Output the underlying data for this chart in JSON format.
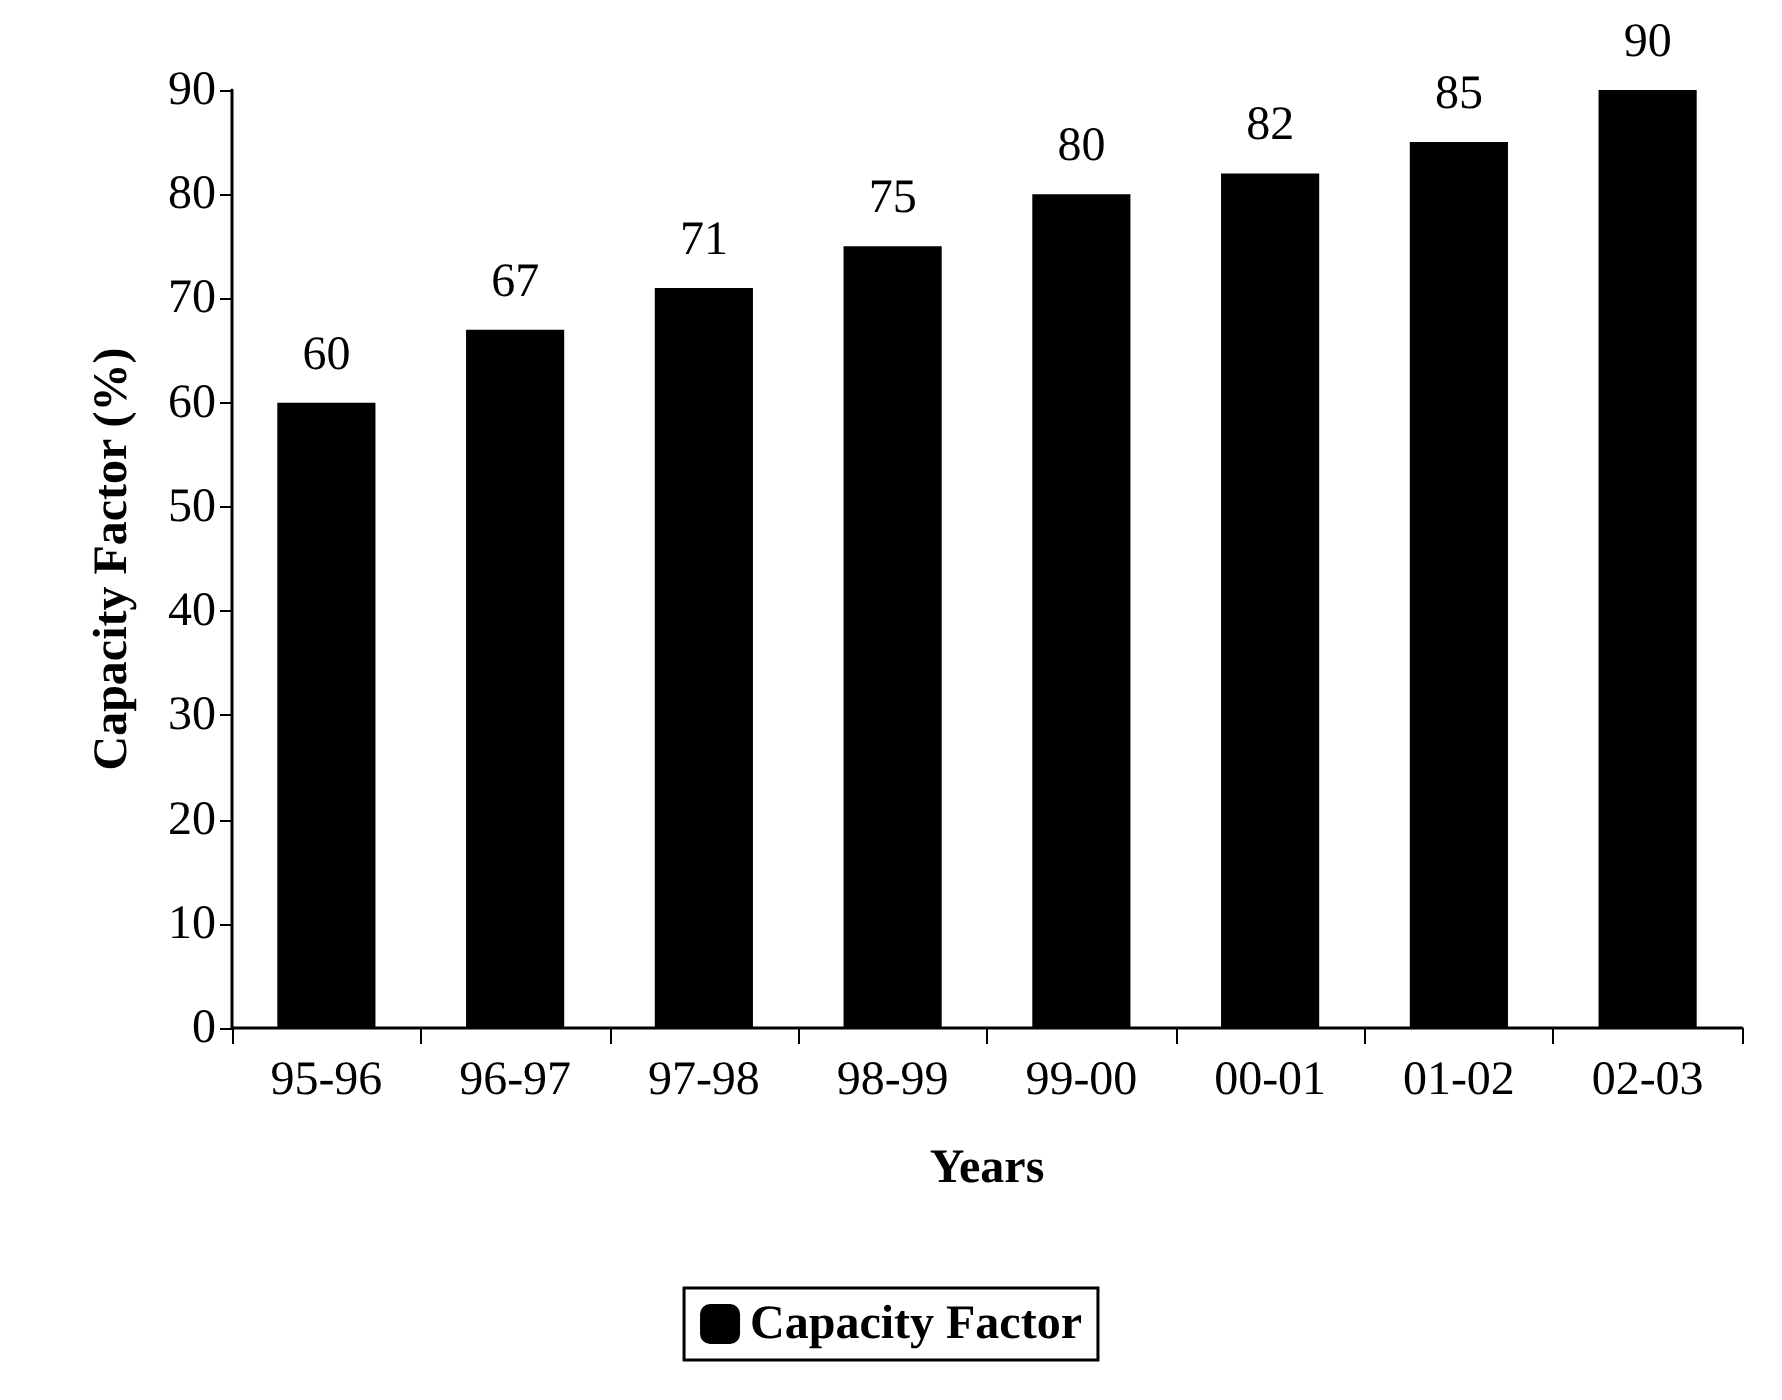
{
  "chart_data": {
    "type": "bar",
    "xlabel": "Years",
    "ylabel": "Capacity Factor (%)",
    "categories": [
      "95-96",
      "96-97",
      "97-98",
      "98-99",
      "99-00",
      "00-01",
      "01-02",
      "02-03"
    ],
    "series": [
      {
        "name": "Capacity Factor",
        "color": "#000000",
        "values": [
          60,
          67,
          71,
          75,
          80,
          82,
          85,
          90
        ]
      }
    ],
    "ylim": [
      0,
      90
    ],
    "yticks": [
      0,
      10,
      20,
      30,
      40,
      50,
      60,
      70,
      80,
      90
    ],
    "grid": false,
    "legend": "bottom",
    "data_labels": true
  }
}
